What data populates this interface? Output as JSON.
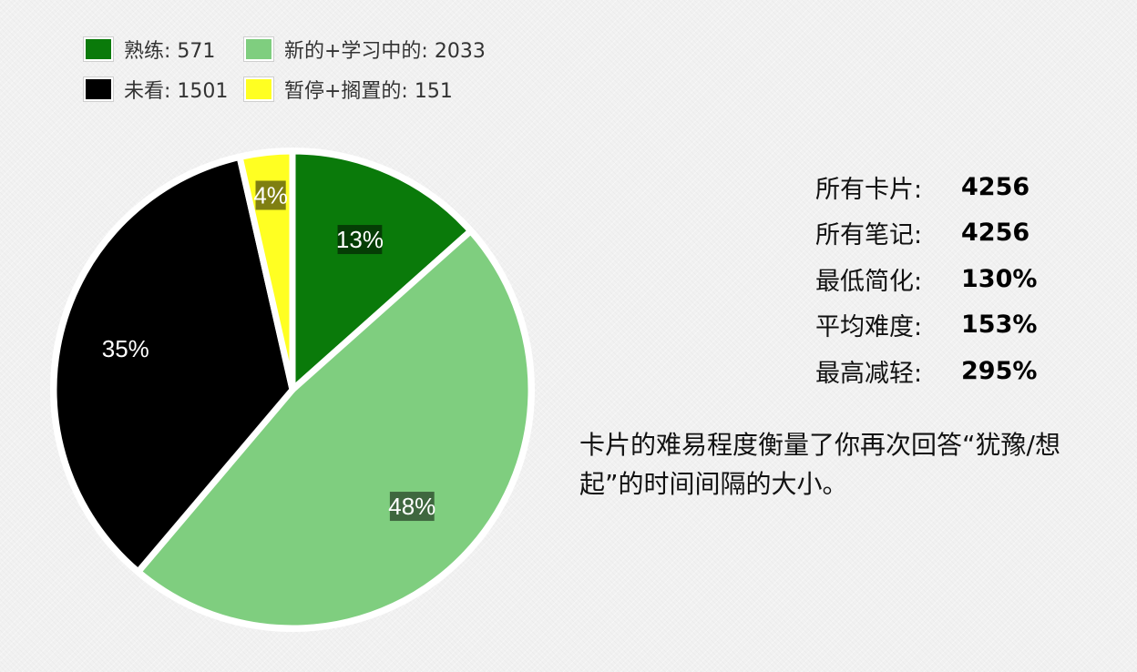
{
  "legend": {
    "items": [
      {
        "label": "熟练: 571",
        "color": "#0a7a0a"
      },
      {
        "label": "新的+学习中的: 2033",
        "color": "#7fce7f"
      },
      {
        "label": "未看: 1501",
        "color": "#000000"
      },
      {
        "label": "暂停+搁置的: 151",
        "color": "#ffff22"
      }
    ]
  },
  "stats": {
    "rows": [
      {
        "label": "所有卡片:",
        "value": "4256"
      },
      {
        "label": "所有笔记:",
        "value": "4256"
      },
      {
        "label": "最低简化:",
        "value": "130%"
      },
      {
        "label": "平均难度:",
        "value": "153%"
      },
      {
        "label": "最高减轻:",
        "value": "295%"
      }
    ]
  },
  "note": "卡片的难易程度衡量了你再次回答“犹豫/想起”的时间间隔的大小。",
  "chart_data": {
    "type": "pie",
    "categories": [
      "熟练",
      "新的+学习中的",
      "未看",
      "暂停+搁置的"
    ],
    "values": [
      571,
      2033,
      1501,
      151
    ],
    "percent_labels": [
      "13%",
      "48%",
      "35%",
      "4%"
    ],
    "colors": [
      "#0a7a0a",
      "#7fce7f",
      "#000000",
      "#ffff22"
    ],
    "legend_position": "top-left"
  }
}
